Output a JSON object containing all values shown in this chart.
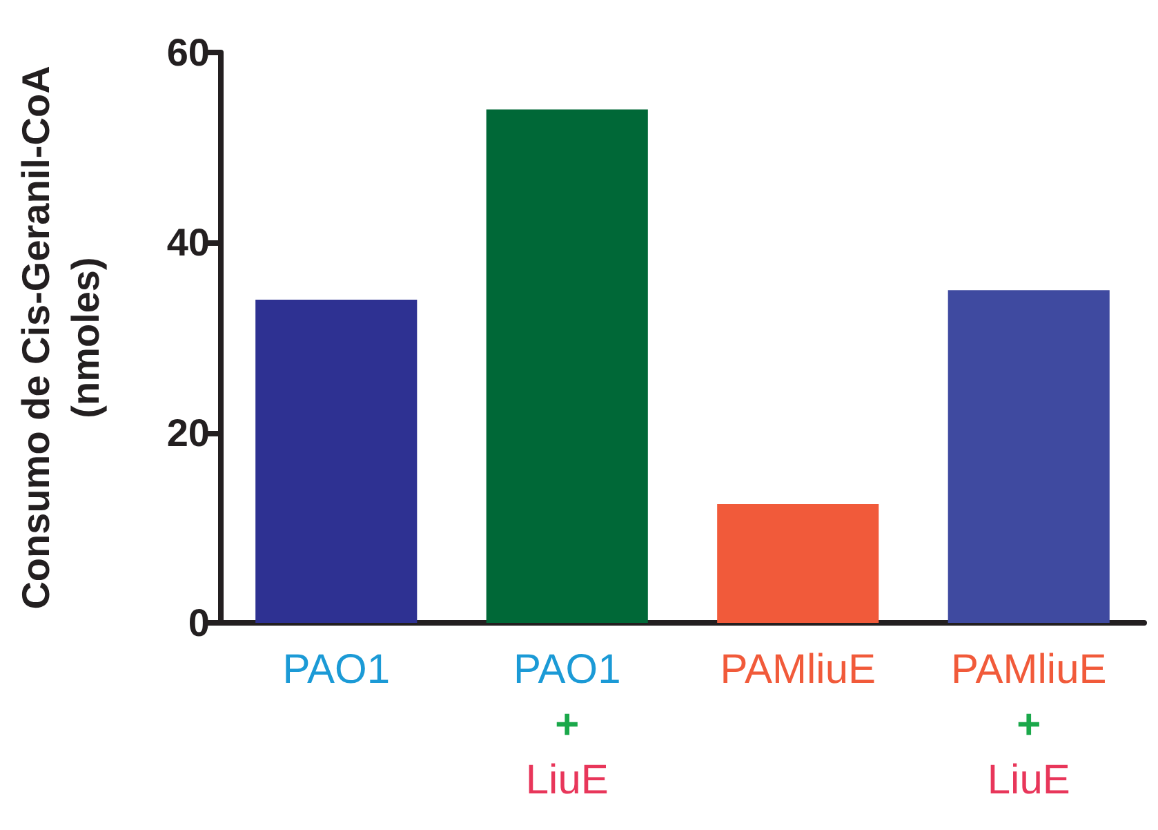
{
  "chart_data": {
    "type": "bar",
    "ylabel": "Consumo de Cis-Geranil-CoA\n(nmoles)",
    "categories": [
      "PAO1",
      "PAO1\n+\nLiuE",
      "PAMliuE",
      "PAMliuE\n+\nLiuE"
    ],
    "values": [
      34,
      54,
      12.5,
      35
    ],
    "colors": [
      "#2e3192",
      "#006837",
      "#f15a3a",
      "#3f4aa0"
    ],
    "ylim": [
      0,
      60
    ],
    "yticks": [
      0,
      20,
      40,
      60
    ],
    "grid": false
  }
}
